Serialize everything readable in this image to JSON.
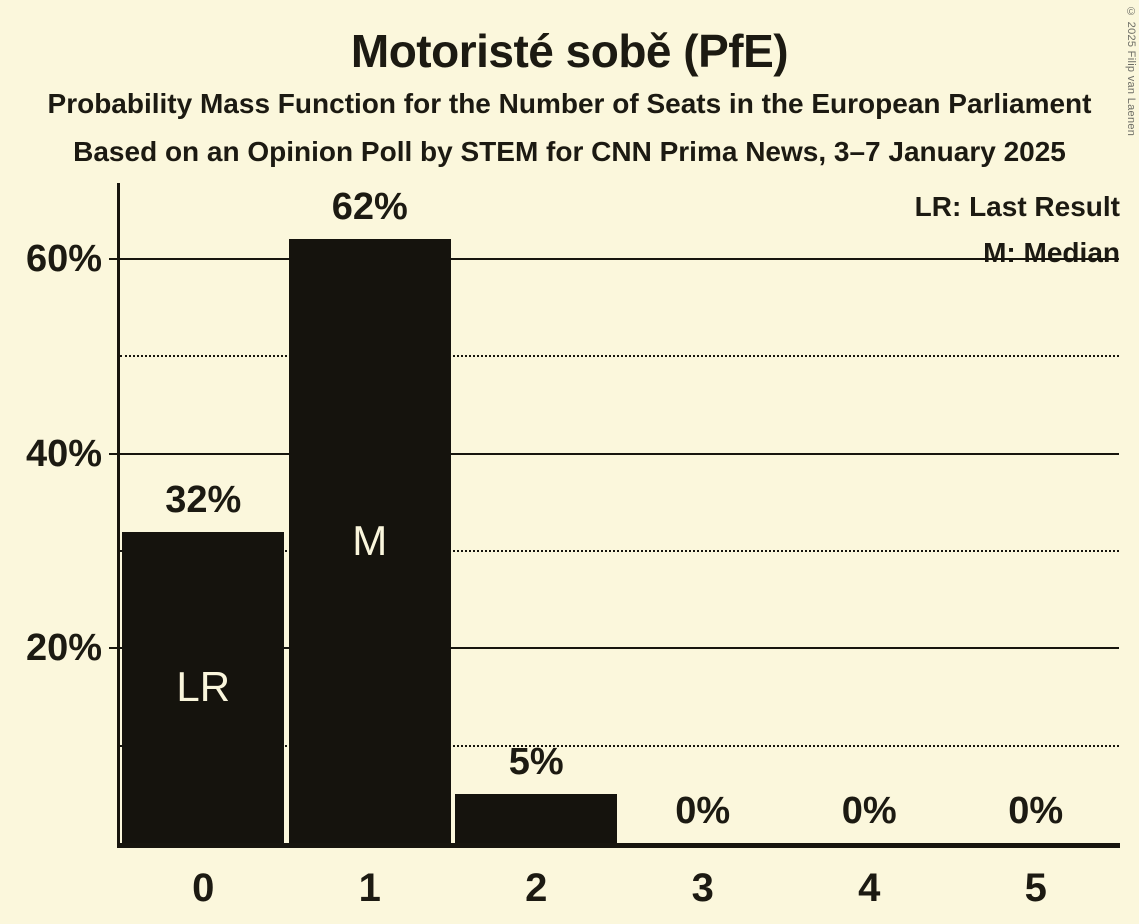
{
  "title": "Motoristé sobě (PfE)",
  "subtitle1": "Probability Mass Function for the Number of Seats in the European Parliament",
  "subtitle2": "Based on an Opinion Poll by STEM for CNN Prima News, 3–7 January 2025",
  "legend": {
    "last_result": "LR: Last Result",
    "median": "M: Median"
  },
  "copyright": "© 2025 Filip van Laenen",
  "colors": {
    "background": "#fbf7dc",
    "bar": "#15130d",
    "ink": "#17150e",
    "bar_text": "#faf6dc",
    "copyright_text": "#6e6e66"
  },
  "chart_data": {
    "type": "bar",
    "title": "Motoristé sobě (PfE)",
    "categories": [
      "0",
      "1",
      "2",
      "3",
      "4",
      "5"
    ],
    "values": [
      32,
      62,
      5,
      0,
      0,
      0
    ],
    "value_labels": [
      "32%",
      "62%",
      "5%",
      "0%",
      "0%",
      "0%"
    ],
    "bar_annotations": [
      "LR",
      "M",
      "",
      "",
      "",
      ""
    ],
    "xlabel": "",
    "ylabel": "",
    "ylim": [
      0,
      67.8
    ],
    "yticks": [
      {
        "pct": 20,
        "label": "20%"
      },
      {
        "pct": 40,
        "label": "40%"
      },
      {
        "pct": 60,
        "label": "60%"
      }
    ],
    "gridlines": [
      {
        "pct": 10,
        "style": "dotted"
      },
      {
        "pct": 20,
        "style": "solid"
      },
      {
        "pct": 30,
        "style": "dotted"
      },
      {
        "pct": 40,
        "style": "solid"
      },
      {
        "pct": 50,
        "style": "dotted"
      },
      {
        "pct": 60,
        "style": "solid"
      }
    ],
    "grid": true,
    "legend_position": "top-right"
  }
}
